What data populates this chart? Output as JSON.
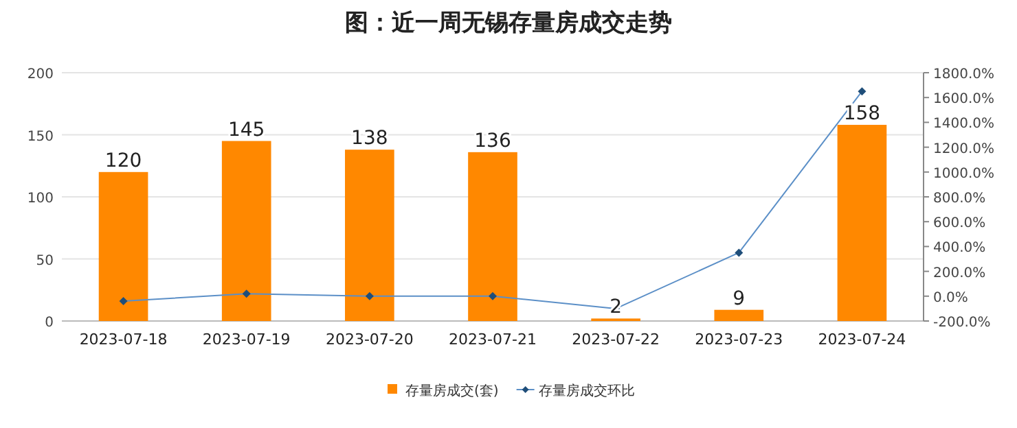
{
  "chart_data": {
    "type": "bar",
    "title": "图：近一周无锡存量房成交走势",
    "categories": [
      "2023-07-18",
      "2023-07-19",
      "2023-07-20",
      "2023-07-21",
      "2023-07-22",
      "2023-07-23",
      "2023-07-24"
    ],
    "series": [
      {
        "name": "存量房成交(套)",
        "color": "#ff8800",
        "values": [
          120,
          145,
          138,
          136,
          2,
          9,
          158
        ],
        "value_labels": [
          "120",
          "145",
          "138",
          "136",
          "2",
          "9",
          "158"
        ]
      },
      {
        "name": "存量房成交环比",
        "type": "line",
        "axis": "y2",
        "color": "#5b8fc7",
        "marker": "diamond",
        "values": [
          -40,
          20,
          0,
          0,
          -100,
          350,
          1650
        ]
      }
    ],
    "ylim": [
      0,
      200
    ],
    "yticks": [
      0,
      50,
      100,
      150,
      200
    ],
    "y2lim": [
      -200,
      1800
    ],
    "y2ticks": [
      {
        "value": -200,
        "label": "-200.0%"
      },
      {
        "value": 0,
        "label": "0.0%"
      },
      {
        "value": 200,
        "label": "200.0%"
      },
      {
        "value": 400,
        "label": "400.0%"
      },
      {
        "value": 600,
        "label": "600.0%"
      },
      {
        "value": 800,
        "label": "800.0%"
      },
      {
        "value": 1000,
        "label": "1000.0%"
      },
      {
        "value": 1200,
        "label": "1200.0%"
      },
      {
        "value": 1400,
        "label": "1400.0%"
      },
      {
        "value": 1600,
        "label": "1600.0%"
      },
      {
        "value": 1800,
        "label": "1800.0%"
      }
    ],
    "grid": "y",
    "legend": "bottom"
  }
}
